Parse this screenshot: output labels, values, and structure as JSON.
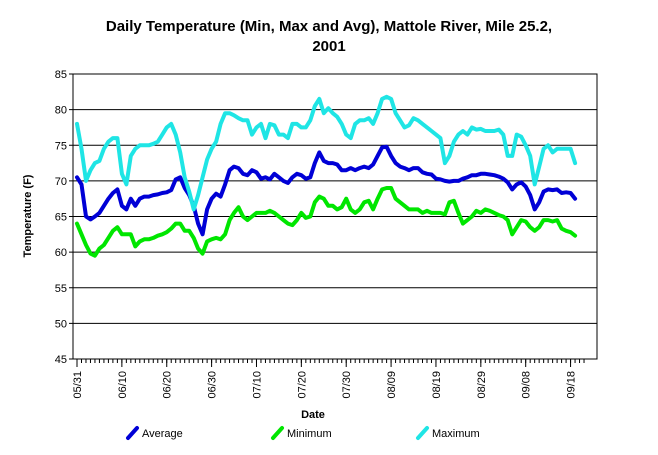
{
  "chart_data": {
    "type": "line",
    "title": [
      "Daily Temperature (Min, Max and Avg), Mattole River, Mile 25.2,",
      "2001"
    ],
    "xlabel": "Date",
    "ylabel": "Temperature (F)",
    "ylim": [
      45,
      85
    ],
    "yticks": [
      45,
      50,
      55,
      60,
      65,
      70,
      75,
      80,
      85
    ],
    "xlim": [
      "2001-05-31",
      "2001-09-23"
    ],
    "xticks": [
      "05/31",
      "06/10",
      "06/20",
      "06/30",
      "07/10",
      "07/20",
      "07/30",
      "08/09",
      "08/19",
      "08/29",
      "09/08",
      "09/18"
    ],
    "grid": "horizontal",
    "legend_position": "bottom",
    "x_start": "2001-05-31",
    "x_end": "2001-09-21",
    "series": [
      {
        "name": "Average",
        "color": "#0000d6",
        "values": [
          70.5,
          69.5,
          65.0,
          64.6,
          65.0,
          65.5,
          66.5,
          67.5,
          68.3,
          68.8,
          66.5,
          66.0,
          67.5,
          66.5,
          67.5,
          67.8,
          67.8,
          68.0,
          68.1,
          68.3,
          68.4,
          68.7,
          70.2,
          70.5,
          69.0,
          68.0,
          66.5,
          64.0,
          62.5,
          66.0,
          67.5,
          68.2,
          67.8,
          69.5,
          71.5,
          72.0,
          71.8,
          71.0,
          70.8,
          71.5,
          71.2,
          70.3,
          70.5,
          70.2,
          71.0,
          70.5,
          70.0,
          69.7,
          70.5,
          71.0,
          70.8,
          70.3,
          70.5,
          72.5,
          74.0,
          72.8,
          72.5,
          72.5,
          72.3,
          71.5,
          71.5,
          71.8,
          71.5,
          71.8,
          72.0,
          71.8,
          72.3,
          73.5,
          74.7,
          74.8,
          73.5,
          72.5,
          72.0,
          71.8,
          71.5,
          71.8,
          71.8,
          71.2,
          71.0,
          70.9,
          70.3,
          70.2,
          70.0,
          69.9,
          70.0,
          70.0,
          70.3,
          70.5,
          70.8,
          70.8,
          71.0,
          71.0,
          70.9,
          70.8,
          70.6,
          70.3,
          69.8,
          68.8,
          69.5,
          69.8,
          69.2,
          68.0,
          66.0,
          67.0,
          68.5,
          68.8,
          68.7,
          68.8,
          68.3,
          68.4,
          68.3,
          67.5
        ]
      },
      {
        "name": "Minimum",
        "color": "#00e600",
        "values": [
          64.0,
          62.5,
          61.0,
          59.8,
          59.5,
          60.5,
          61.0,
          62.0,
          63.0,
          63.5,
          62.5,
          62.5,
          62.5,
          60.8,
          61.5,
          61.8,
          61.8,
          62.0,
          62.3,
          62.5,
          62.8,
          63.3,
          64.0,
          64.0,
          63.0,
          63.0,
          62.0,
          60.5,
          59.8,
          61.5,
          61.8,
          62.0,
          61.8,
          62.5,
          64.5,
          65.5,
          66.3,
          65.0,
          64.5,
          65.0,
          65.5,
          65.5,
          65.5,
          65.8,
          65.5,
          65.0,
          64.5,
          64.0,
          63.8,
          64.5,
          65.5,
          64.8,
          65.0,
          67.0,
          67.8,
          67.5,
          66.5,
          66.5,
          66.0,
          66.3,
          67.5,
          66.0,
          65.5,
          66.0,
          67.0,
          67.2,
          66.0,
          67.5,
          68.8,
          69.0,
          69.0,
          67.5,
          67.0,
          66.5,
          66.0,
          66.0,
          66.0,
          65.5,
          65.8,
          65.5,
          65.5,
          65.5,
          65.3,
          67.0,
          67.2,
          65.5,
          64.0,
          64.5,
          65.0,
          65.8,
          65.5,
          66.0,
          65.8,
          65.5,
          65.2,
          65.0,
          64.5,
          62.5,
          63.5,
          64.5,
          64.3,
          63.5,
          63.0,
          63.5,
          64.5,
          64.5,
          64.3,
          64.5,
          63.3,
          63.0,
          62.8,
          62.3
        ]
      },
      {
        "name": "Maximum",
        "color": "#1fe5e5",
        "values": [
          78.0,
          74.5,
          70.0,
          71.5,
          72.5,
          72.8,
          74.5,
          75.5,
          76.0,
          76.0,
          71.0,
          69.5,
          73.5,
          74.5,
          75.0,
          75.0,
          75.0,
          75.2,
          75.5,
          76.5,
          77.5,
          78.0,
          76.5,
          74.0,
          70.5,
          68.5,
          66.0,
          68.0,
          70.5,
          73.0,
          74.5,
          75.5,
          78.0,
          79.5,
          79.5,
          79.2,
          78.8,
          78.5,
          78.5,
          76.5,
          77.5,
          78.0,
          76.0,
          78.0,
          77.8,
          76.5,
          76.5,
          76.0,
          78.0,
          78.0,
          77.5,
          77.5,
          78.5,
          80.5,
          81.5,
          79.5,
          80.2,
          79.5,
          79.0,
          78.0,
          76.5,
          76.0,
          78.0,
          78.5,
          78.5,
          78.8,
          78.0,
          79.5,
          81.5,
          81.8,
          81.5,
          79.5,
          78.5,
          77.5,
          77.8,
          78.8,
          78.5,
          78.0,
          77.5,
          77.0,
          76.5,
          76.0,
          72.5,
          73.5,
          75.5,
          76.5,
          77.0,
          76.5,
          77.5,
          77.2,
          77.3,
          77.0,
          77.0,
          77.0,
          77.2,
          76.5,
          73.5,
          73.5,
          76.5,
          76.2,
          75.0,
          73.5,
          69.5,
          72.0,
          74.5,
          75.0,
          74.0,
          74.5,
          74.5,
          74.5,
          74.5,
          72.5
        ]
      }
    ]
  }
}
